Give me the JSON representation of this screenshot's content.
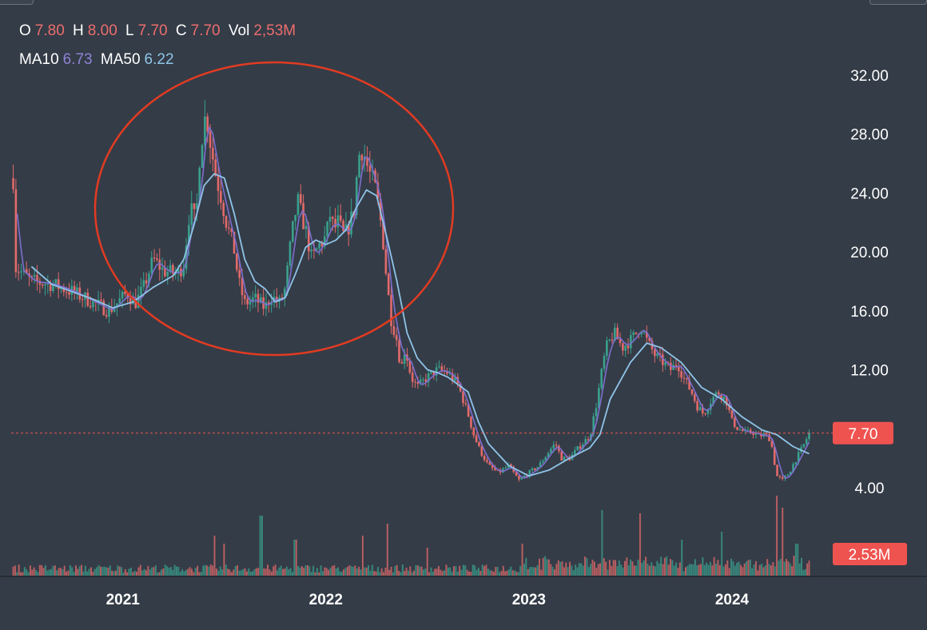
{
  "legend": {
    "ohlc": [
      {
        "key": "O",
        "value": "7.80"
      },
      {
        "key": "H",
        "value": "8.00"
      },
      {
        "key": "L",
        "value": "7.70"
      },
      {
        "key": "C",
        "value": "7.70"
      },
      {
        "key": "Vol",
        "value": "2,53M"
      }
    ],
    "ma": [
      {
        "key": "MA10",
        "value": "6.73"
      },
      {
        "key": "MA50",
        "value": "6.22"
      }
    ]
  },
  "colors": {
    "background": "#343c47",
    "up": "#3aa08e",
    "down": "#e26a6a",
    "ma10": "#7d6fd0",
    "ma50": "#8fc4e8",
    "price_line": "#ef5350",
    "annotation": "#e23b22"
  },
  "chart_data": {
    "type": "candlestick",
    "y_ticks": [
      "32.00",
      "28.00",
      "24.00",
      "20.00",
      "16.00",
      "12.00",
      "4.00"
    ],
    "x_ticks": [
      "2021",
      "2022",
      "2023",
      "2024"
    ],
    "x_tick_values": [
      2021.0,
      2022.0,
      2023.0,
      2024.0
    ],
    "ylim": [
      0,
      33.5
    ],
    "xlim": [
      2020.45,
      2024.5
    ],
    "grid": false,
    "last_price": 7.7,
    "last_price_label": "7.70",
    "last_volume_label": "2.53M",
    "price_series": [
      [
        2020.46,
        25.0
      ],
      [
        2020.47,
        19.0
      ],
      [
        2020.55,
        18.0
      ],
      [
        2020.65,
        17.8
      ],
      [
        2020.75,
        17.3
      ],
      [
        2020.85,
        16.6
      ],
      [
        2020.93,
        16.0
      ],
      [
        2020.97,
        16.5
      ],
      [
        2021.02,
        17.2
      ],
      [
        2021.06,
        16.5
      ],
      [
        2021.1,
        17.5
      ],
      [
        2021.15,
        19.5
      ],
      [
        2021.2,
        18.7
      ],
      [
        2021.27,
        18.5
      ],
      [
        2021.3,
        19.2
      ],
      [
        2021.33,
        23.0
      ],
      [
        2021.36,
        22.0
      ],
      [
        2021.38,
        27.0
      ],
      [
        2021.41,
        29.5
      ],
      [
        2021.43,
        27.5
      ],
      [
        2021.46,
        25.0
      ],
      [
        2021.48,
        24.0
      ],
      [
        2021.51,
        22.0
      ],
      [
        2021.53,
        21.0
      ],
      [
        2021.55,
        20.0
      ],
      [
        2021.57,
        18.0
      ],
      [
        2021.6,
        16.5
      ],
      [
        2021.65,
        16.8
      ],
      [
        2021.7,
        16.2
      ],
      [
        2021.73,
        17.0
      ],
      [
        2021.77,
        16.5
      ],
      [
        2021.8,
        17.5
      ],
      [
        2021.83,
        21.0
      ],
      [
        2021.86,
        23.5
      ],
      [
        2021.9,
        21.5
      ],
      [
        2021.93,
        19.5
      ],
      [
        2021.97,
        20.5
      ],
      [
        2022.0,
        21.0
      ],
      [
        2022.02,
        22.5
      ],
      [
        2022.04,
        21.5
      ],
      [
        2022.06,
        22.0
      ],
      [
        2022.09,
        21.0
      ],
      [
        2022.12,
        22.0
      ],
      [
        2022.14,
        23.0
      ],
      [
        2022.16,
        26.5
      ],
      [
        2022.18,
        27.0
      ],
      [
        2022.21,
        25.5
      ],
      [
        2022.24,
        24.5
      ],
      [
        2022.26,
        23.0
      ],
      [
        2022.28,
        21.0
      ],
      [
        2022.3,
        18.0
      ],
      [
        2022.32,
        15.5
      ],
      [
        2022.35,
        14.0
      ],
      [
        2022.37,
        12.0
      ],
      [
        2022.39,
        13.5
      ],
      [
        2022.42,
        11.5
      ],
      [
        2022.45,
        10.8
      ],
      [
        2022.5,
        11.5
      ],
      [
        2022.55,
        12.0
      ],
      [
        2022.6,
        11.8
      ],
      [
        2022.65,
        11.0
      ],
      [
        2022.7,
        9.0
      ],
      [
        2022.73,
        7.5
      ],
      [
        2022.76,
        6.5
      ],
      [
        2022.8,
        5.5
      ],
      [
        2022.85,
        5.0
      ],
      [
        2022.9,
        5.5
      ],
      [
        2022.95,
        4.5
      ],
      [
        2023.0,
        5.0
      ],
      [
        2023.05,
        5.5
      ],
      [
        2023.1,
        6.5
      ],
      [
        2023.13,
        7.0
      ],
      [
        2023.16,
        6.0
      ],
      [
        2023.2,
        6.0
      ],
      [
        2023.25,
        6.8
      ],
      [
        2023.3,
        7.5
      ],
      [
        2023.33,
        9.5
      ],
      [
        2023.36,
        12.0
      ],
      [
        2023.38,
        13.5
      ],
      [
        2023.42,
        14.5
      ],
      [
        2023.46,
        13.5
      ],
      [
        2023.5,
        14.0
      ],
      [
        2023.53,
        14.5
      ],
      [
        2023.55,
        15.0
      ],
      [
        2023.58,
        14.0
      ],
      [
        2023.62,
        13.0
      ],
      [
        2023.66,
        12.5
      ],
      [
        2023.7,
        12.0
      ],
      [
        2023.73,
        12.5
      ],
      [
        2023.76,
        11.5
      ],
      [
        2023.8,
        10.5
      ],
      [
        2023.83,
        9.5
      ],
      [
        2023.86,
        9.0
      ],
      [
        2023.9,
        10.0
      ],
      [
        2023.93,
        10.5
      ],
      [
        2023.97,
        10.0
      ],
      [
        2024.0,
        8.5
      ],
      [
        2024.03,
        8.0
      ],
      [
        2024.07,
        7.7
      ],
      [
        2024.1,
        7.8
      ],
      [
        2024.13,
        7.5
      ],
      [
        2024.16,
        7.6
      ],
      [
        2024.19,
        7.3
      ],
      [
        2024.22,
        4.8
      ],
      [
        2024.25,
        4.5
      ],
      [
        2024.28,
        5.0
      ],
      [
        2024.31,
        5.8
      ],
      [
        2024.35,
        6.8
      ],
      [
        2024.38,
        7.7
      ]
    ],
    "ma50_series": [
      [
        2020.55,
        19.0
      ],
      [
        2020.65,
        17.8
      ],
      [
        2020.75,
        17.3
      ],
      [
        2020.85,
        16.8
      ],
      [
        2020.95,
        16.2
      ],
      [
        2021.05,
        16.6
      ],
      [
        2021.15,
        17.6
      ],
      [
        2021.25,
        18.4
      ],
      [
        2021.3,
        19.5
      ],
      [
        2021.35,
        21.8
      ],
      [
        2021.4,
        24.5
      ],
      [
        2021.45,
        25.3
      ],
      [
        2021.5,
        25.0
      ],
      [
        2021.55,
        22.5
      ],
      [
        2021.6,
        19.5
      ],
      [
        2021.65,
        18.0
      ],
      [
        2021.7,
        17.5
      ],
      [
        2021.75,
        16.6
      ],
      [
        2021.8,
        16.9
      ],
      [
        2021.85,
        18.5
      ],
      [
        2021.9,
        20.3
      ],
      [
        2021.95,
        20.8
      ],
      [
        2022.0,
        20.5
      ],
      [
        2022.05,
        20.8
      ],
      [
        2022.1,
        21.5
      ],
      [
        2022.15,
        23.0
      ],
      [
        2022.2,
        24.2
      ],
      [
        2022.25,
        23.8
      ],
      [
        2022.3,
        21.0
      ],
      [
        2022.35,
        18.0
      ],
      [
        2022.4,
        14.5
      ],
      [
        2022.45,
        12.8
      ],
      [
        2022.5,
        12.0
      ],
      [
        2022.55,
        11.8
      ],
      [
        2022.6,
        11.5
      ],
      [
        2022.7,
        10.5
      ],
      [
        2022.75,
        8.5
      ],
      [
        2022.8,
        7.0
      ],
      [
        2022.9,
        5.5
      ],
      [
        2023.0,
        4.8
      ],
      [
        2023.1,
        5.2
      ],
      [
        2023.2,
        6.0
      ],
      [
        2023.3,
        6.7
      ],
      [
        2023.35,
        7.6
      ],
      [
        2023.4,
        10.0
      ],
      [
        2023.5,
        12.5
      ],
      [
        2023.58,
        13.8
      ],
      [
        2023.65,
        13.5
      ],
      [
        2023.75,
        12.5
      ],
      [
        2023.85,
        10.8
      ],
      [
        2023.95,
        10.0
      ],
      [
        2024.05,
        8.8
      ],
      [
        2024.15,
        7.9
      ],
      [
        2024.22,
        7.6
      ],
      [
        2024.3,
        6.8
      ],
      [
        2024.38,
        6.3
      ]
    ],
    "volume_note": "relative heights, max 1.0",
    "volume_spikes": [
      [
        2021.45,
        0.5
      ],
      [
        2021.5,
        0.4
      ],
      [
        2021.68,
        0.75
      ],
      [
        2021.85,
        0.45
      ],
      [
        2022.18,
        0.5
      ],
      [
        2022.3,
        0.65
      ],
      [
        2022.5,
        0.35
      ],
      [
        2022.97,
        0.4
      ],
      [
        2023.36,
        0.82
      ],
      [
        2023.55,
        0.78
      ],
      [
        2023.75,
        0.45
      ],
      [
        2023.95,
        0.55
      ],
      [
        2024.22,
        1.0
      ],
      [
        2024.25,
        0.85
      ],
      [
        2024.32,
        0.4
      ]
    ]
  }
}
